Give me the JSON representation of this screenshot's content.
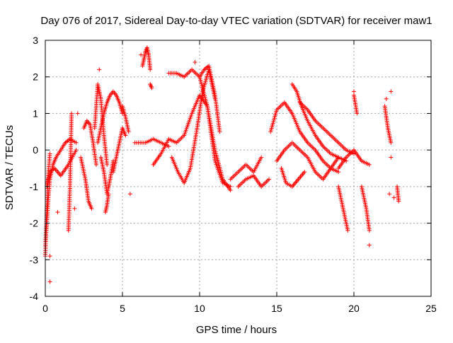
{
  "chart_data": {
    "type": "scatter",
    "title": "Day 076 of 2017, Sidereal Day-to-day VTEC variation (SDTVAR) for receiver maw1",
    "xlabel": "GPS time / hours",
    "ylabel": "SDTVAR / TECUs",
    "xlim": [
      0,
      25
    ],
    "ylim": [
      -4,
      3
    ],
    "xticks": [
      0,
      5,
      10,
      15,
      20,
      25
    ],
    "yticks": [
      -4,
      -3,
      -2,
      -1,
      0,
      1,
      2,
      3
    ],
    "xtick_labels": [
      "0",
      "5",
      "10",
      "15",
      "20",
      "25"
    ],
    "ytick_labels": [
      "-4",
      "-3",
      "-2",
      "-1",
      "0",
      "1",
      "2",
      "3"
    ],
    "grid": true,
    "marker": "+",
    "color": "#ff0000",
    "series": [
      {
        "name": "SDTVAR",
        "tracks": [
          {
            "x": [
              0.0,
              0.1,
              0.2,
              0.3,
              0.5,
              0.7,
              1.0,
              1.3,
              1.6,
              2.0
            ],
            "y": [
              -2.6,
              -2.0,
              -1.3,
              -0.8,
              -0.4,
              -0.2,
              0.0,
              0.2,
              0.3,
              0.2
            ]
          },
          {
            "x": [
              0.0,
              0.1,
              0.2,
              0.3
            ],
            "y": [
              -2.9,
              -1.6,
              -0.6,
              -0.1
            ]
          },
          {
            "x": [
              0.1,
              0.3,
              0.6,
              1.0,
              1.5,
              2.0
            ],
            "y": [
              -1.0,
              -0.6,
              -0.5,
              -0.7,
              -0.4,
              0.0
            ]
          },
          {
            "x": [
              1.5,
              1.6,
              1.7
            ],
            "y": [
              -2.2,
              -1.0,
              1.0
            ]
          },
          {
            "x": [
              2.3,
              2.6,
              2.8,
              3.0
            ],
            "y": [
              -0.2,
              -0.8,
              -1.4,
              -1.6
            ]
          },
          {
            "x": [
              2.5,
              2.7,
              2.9,
              3.1,
              3.3
            ],
            "y": [
              0.6,
              0.8,
              0.7,
              0.2,
              -0.4
            ]
          },
          {
            "x": [
              3.2,
              3.4,
              3.6,
              3.8,
              4.0
            ],
            "y": [
              0.6,
              1.8,
              1.4,
              0.4,
              -0.4
            ]
          },
          {
            "x": [
              3.4,
              3.6,
              3.8,
              4.0,
              4.2,
              4.4,
              4.6,
              4.8,
              5.0
            ],
            "y": [
              0.2,
              0.6,
              1.0,
              1.3,
              1.5,
              1.6,
              1.5,
              1.3,
              1.0
            ]
          },
          {
            "x": [
              3.6,
              3.8,
              4.0,
              4.2,
              4.4
            ],
            "y": [
              -0.2,
              -0.6,
              -1.2,
              -0.8,
              -0.3
            ]
          },
          {
            "x": [
              3.9,
              4.0,
              4.1
            ],
            "y": [
              -1.7,
              -1.5,
              -1.2
            ]
          },
          {
            "x": [
              4.4,
              4.6,
              4.8,
              5.0,
              5.2
            ],
            "y": [
              -0.6,
              -0.2,
              0.2,
              0.6,
              0.4
            ]
          },
          {
            "x": [
              5.0,
              5.2,
              5.4
            ],
            "y": [
              1.2,
              0.9,
              0.5
            ]
          },
          {
            "x": [
              6.3,
              6.4,
              6.5,
              6.6,
              6.7,
              6.8
            ],
            "y": [
              2.3,
              2.5,
              2.7,
              2.8,
              2.6,
              2.2
            ]
          },
          {
            "x": [
              6.8,
              6.9
            ],
            "y": [
              1.8,
              1.7
            ]
          },
          {
            "x": [
              5.8,
              6.5,
              7.0,
              7.5,
              8.0
            ],
            "y": [
              0.2,
              0.2,
              0.3,
              0.2,
              0.1
            ]
          },
          {
            "x": [
              7.0,
              7.5,
              8.0,
              8.5,
              9.0,
              9.5,
              10.0,
              10.5,
              11.0,
              11.5,
              12.0
            ],
            "y": [
              -0.4,
              -0.1,
              0.3,
              0.2,
              0.4,
              1.0,
              1.5,
              1.2,
              0.0,
              -0.8,
              -1.1
            ]
          },
          {
            "x": [
              8.0,
              8.5,
              9.0,
              9.5,
              10.0,
              10.5,
              11.0,
              11.5,
              12.0
            ],
            "y": [
              2.1,
              2.1,
              2.0,
              2.2,
              2.0,
              1.2,
              -0.3,
              -0.9,
              -1.0
            ]
          },
          {
            "x": [
              8.2,
              8.6,
              9.0,
              9.4,
              9.8,
              10.2,
              10.6,
              11.0
            ],
            "y": [
              -0.2,
              -0.6,
              -0.9,
              -0.5,
              0.5,
              1.6,
              2.2,
              1.4
            ]
          },
          {
            "x": [
              10.0,
              10.3,
              10.6,
              11.0,
              11.3
            ],
            "y": [
              2.0,
              2.2,
              2.3,
              1.5,
              0.5
            ]
          },
          {
            "x": [
              12.0,
              12.5,
              13.0,
              13.5,
              14.0
            ],
            "y": [
              -0.8,
              -0.6,
              -0.4,
              -0.6,
              -0.2
            ]
          },
          {
            "x": [
              12.5,
              13.0,
              13.5,
              14.0,
              14.5
            ],
            "y": [
              -1.0,
              -0.8,
              -0.7,
              -1.0,
              -0.8
            ]
          },
          {
            "x": [
              14.6,
              15.0,
              15.5,
              16.0,
              16.5,
              17.0,
              17.5,
              18.0,
              18.5,
              19.0
            ],
            "y": [
              0.5,
              1.1,
              1.3,
              1.0,
              0.5,
              0.2,
              0.0,
              -0.3,
              -0.5,
              -0.6
            ]
          },
          {
            "x": [
              15.0,
              15.5,
              16.0,
              16.5,
              17.0,
              17.5,
              18.0,
              18.5,
              19.0,
              19.5
            ],
            "y": [
              -0.3,
              0.0,
              0.2,
              0.0,
              -0.2,
              -0.6,
              -0.8,
              -0.5,
              -0.2,
              -0.3
            ]
          },
          {
            "x": [
              16.0,
              16.3,
              16.6,
              17.0,
              17.5,
              18.0,
              18.5,
              19.0
            ],
            "y": [
              1.8,
              1.6,
              1.2,
              0.8,
              0.4,
              0.1,
              -0.1,
              -0.2
            ]
          },
          {
            "x": [
              16.5,
              17.0,
              17.5,
              18.0,
              18.5,
              19.0,
              19.5,
              20.0
            ],
            "y": [
              1.3,
              1.1,
              0.8,
              0.6,
              0.4,
              0.2,
              0.0,
              -0.1
            ]
          },
          {
            "x": [
              15.3,
              15.6,
              16.0,
              16.4,
              16.8
            ],
            "y": [
              -0.5,
              -0.9,
              -1.0,
              -0.8,
              -0.6
            ]
          },
          {
            "x": [
              19.0,
              19.5,
              20.0,
              20.5,
              21.0
            ],
            "y": [
              -0.5,
              -0.2,
              0.0,
              -0.3,
              -0.4
            ]
          },
          {
            "x": [
              19.0,
              19.3,
              19.6
            ],
            "y": [
              -1.0,
              -1.6,
              -2.2
            ]
          },
          {
            "x": [
              20.5,
              20.8,
              21.0
            ],
            "y": [
              -1.0,
              -1.6,
              -2.2
            ]
          },
          {
            "x": [
              20.0,
              20.2
            ],
            "y": [
              1.5,
              1.0
            ]
          },
          {
            "x": [
              22.0,
              22.2,
              22.4
            ],
            "y": [
              1.2,
              0.6,
              0.2
            ]
          },
          {
            "x": [
              22.8,
              22.9
            ],
            "y": [
              -1.0,
              -1.4
            ]
          }
        ],
        "points": [
          {
            "x": 0.3,
            "y": -3.6
          },
          {
            "x": 0.3,
            "y": -2.9
          },
          {
            "x": 0.8,
            "y": -1.7
          },
          {
            "x": 1.9,
            "y": -1.6
          },
          {
            "x": 2.1,
            "y": 1.0
          },
          {
            "x": 3.5,
            "y": 2.2
          },
          {
            "x": 5.5,
            "y": -1.2
          },
          {
            "x": 6.2,
            "y": 2.6
          },
          {
            "x": 9.7,
            "y": 2.4
          },
          {
            "x": 20.0,
            "y": 1.6
          },
          {
            "x": 21.0,
            "y": -2.6
          },
          {
            "x": 22.1,
            "y": 1.4
          },
          {
            "x": 22.4,
            "y": 1.6
          },
          {
            "x": 22.4,
            "y": -0.2
          },
          {
            "x": 22.3,
            "y": -1.2
          },
          {
            "x": 22.6,
            "y": -1.3
          }
        ]
      }
    ]
  }
}
